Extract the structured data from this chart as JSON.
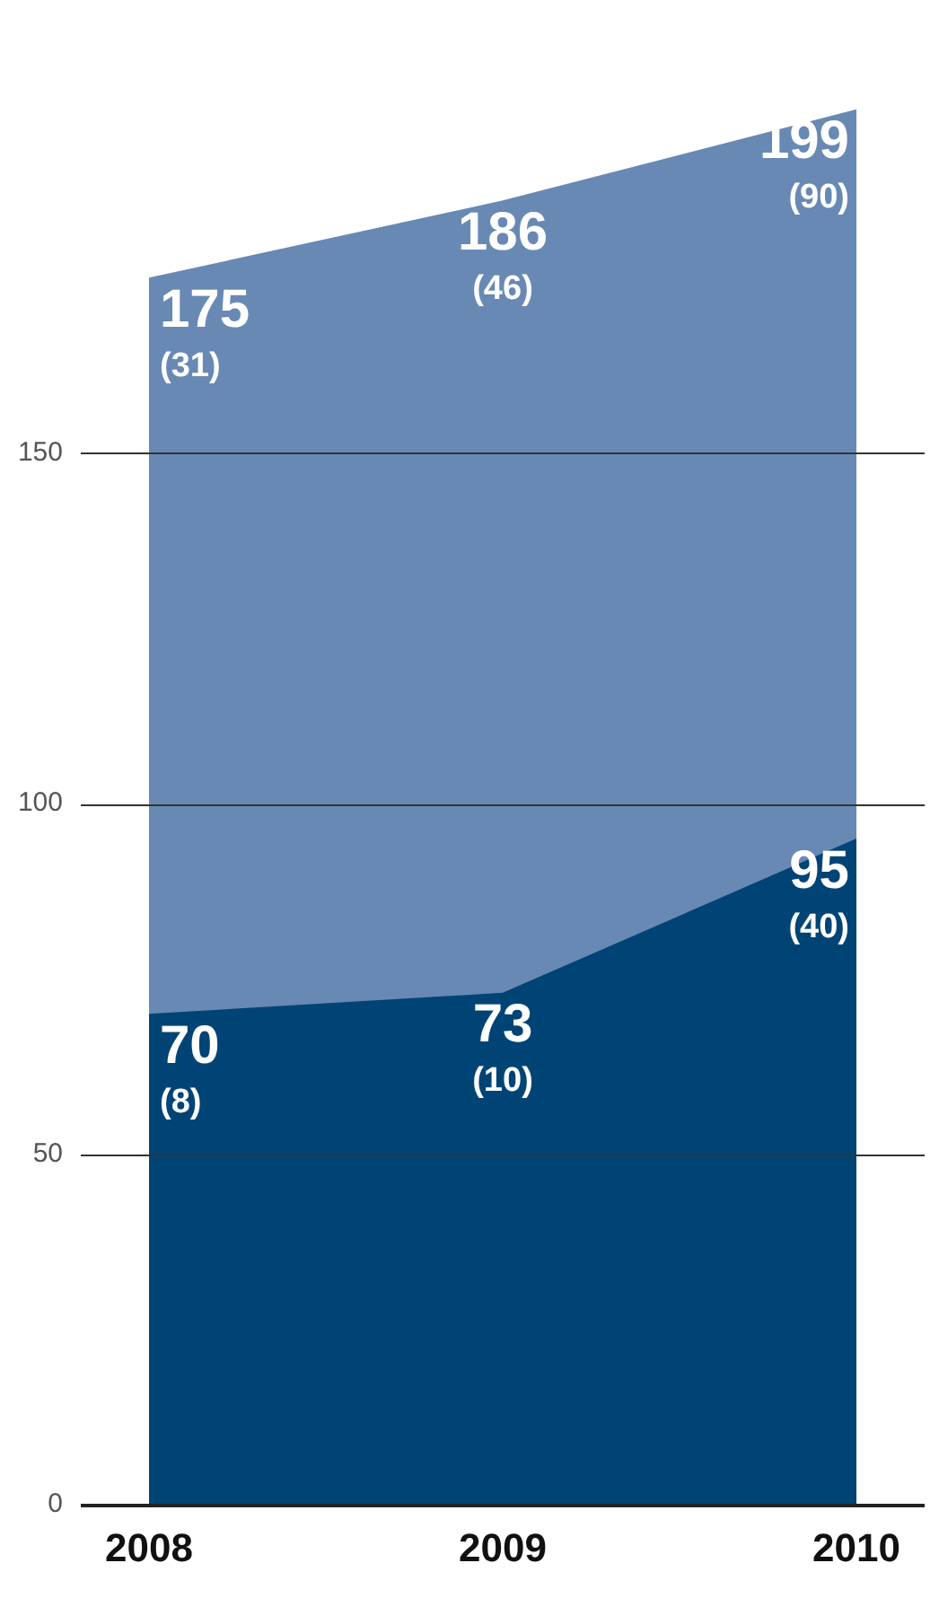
{
  "chart_data": {
    "type": "area",
    "categories": [
      "2008",
      "2009",
      "2010"
    ],
    "series": [
      {
        "color": "#6889b3",
        "values": [
          175,
          186,
          199
        ],
        "value_labels": [
          "175 (31)",
          "186 (46)",
          "199 (90)"
        ]
      },
      {
        "color": "#004476",
        "values": [
          70,
          73,
          95
        ],
        "value_labels": [
          "70 (8)",
          "73 (10)",
          "95 (40)"
        ]
      }
    ],
    "ylim": [
      0,
      200
    ],
    "yticks": [
      0,
      50,
      100,
      150
    ],
    "grid": "y"
  }
}
